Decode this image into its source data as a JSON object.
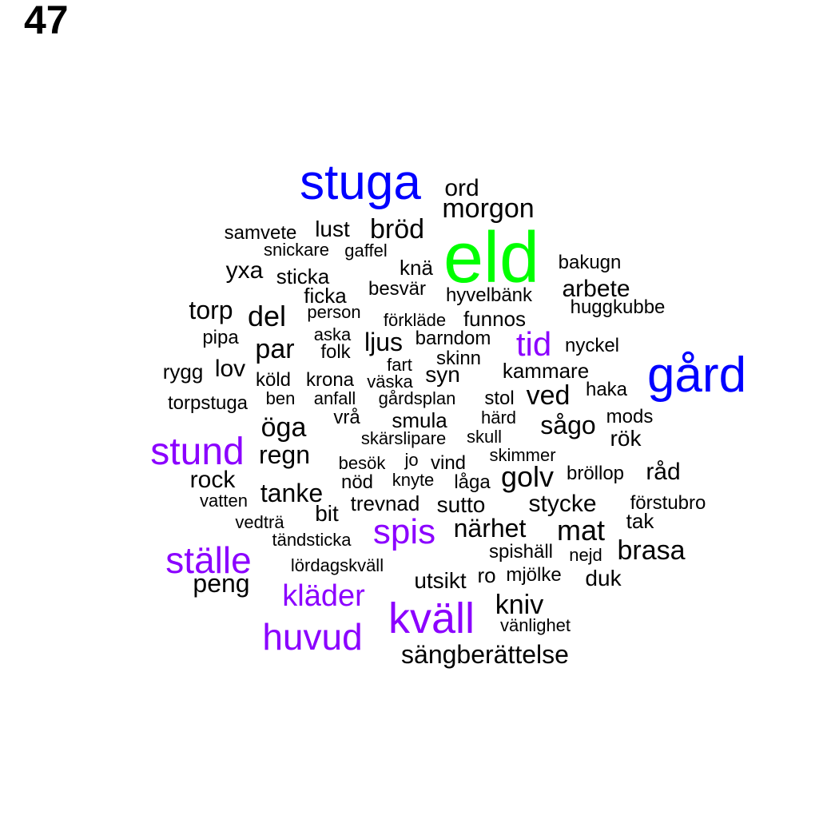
{
  "page_number": "47",
  "colors": {
    "blue": "#0000ff",
    "green": "#00ff00",
    "purple": "#8b00ff",
    "black": "#000000"
  },
  "words": [
    {
      "text": "eld",
      "c": "green"
    },
    {
      "text": "stuga",
      "c": "blue"
    },
    {
      "text": "gård",
      "c": "blue"
    },
    {
      "text": "kväll",
      "c": "purple"
    },
    {
      "text": "stund",
      "c": "purple"
    },
    {
      "text": "huvud",
      "c": "purple"
    },
    {
      "text": "ställe",
      "c": "purple"
    },
    {
      "text": "spis",
      "c": "purple"
    },
    {
      "text": "kläder",
      "c": "purple"
    },
    {
      "text": "tid",
      "c": "purple"
    },
    {
      "text": "ord",
      "c": "black"
    },
    {
      "text": "morgon",
      "c": "black"
    },
    {
      "text": "bröd",
      "c": "black"
    },
    {
      "text": "lust",
      "c": "black"
    },
    {
      "text": "samvete",
      "c": "black"
    },
    {
      "text": "snickare",
      "c": "black"
    },
    {
      "text": "gaffel",
      "c": "black"
    },
    {
      "text": "knä",
      "c": "black"
    },
    {
      "text": "bakugn",
      "c": "black"
    },
    {
      "text": "yxa",
      "c": "black"
    },
    {
      "text": "sticka",
      "c": "black"
    },
    {
      "text": "arbete",
      "c": "black"
    },
    {
      "text": "besvär",
      "c": "black"
    },
    {
      "text": "ficka",
      "c": "black"
    },
    {
      "text": "hyvelbänk",
      "c": "black"
    },
    {
      "text": "huggkubbe",
      "c": "black"
    },
    {
      "text": "torp",
      "c": "black"
    },
    {
      "text": "del",
      "c": "black"
    },
    {
      "text": "person",
      "c": "black"
    },
    {
      "text": "förkläde",
      "c": "black"
    },
    {
      "text": "funnos",
      "c": "black"
    },
    {
      "text": "pipa",
      "c": "black"
    },
    {
      "text": "aska",
      "c": "black"
    },
    {
      "text": "ljus",
      "c": "black"
    },
    {
      "text": "barndom",
      "c": "black"
    },
    {
      "text": "par",
      "c": "black"
    },
    {
      "text": "folk",
      "c": "black"
    },
    {
      "text": "nyckel",
      "c": "black"
    },
    {
      "text": "skinn",
      "c": "black"
    },
    {
      "text": "rygg",
      "c": "black"
    },
    {
      "text": "lov",
      "c": "black"
    },
    {
      "text": "fart",
      "c": "black"
    },
    {
      "text": "kammare",
      "c": "black"
    },
    {
      "text": "köld",
      "c": "black"
    },
    {
      "text": "krona",
      "c": "black"
    },
    {
      "text": "väska",
      "c": "black"
    },
    {
      "text": "syn",
      "c": "black"
    },
    {
      "text": "haka",
      "c": "black"
    },
    {
      "text": "ved",
      "c": "black"
    },
    {
      "text": "torpstuga",
      "c": "black"
    },
    {
      "text": "ben",
      "c": "black"
    },
    {
      "text": "anfall",
      "c": "black"
    },
    {
      "text": "gårdsplan",
      "c": "black"
    },
    {
      "text": "stol",
      "c": "black"
    },
    {
      "text": "mods",
      "c": "black"
    },
    {
      "text": "öga",
      "c": "black"
    },
    {
      "text": "vrå",
      "c": "black"
    },
    {
      "text": "smula",
      "c": "black"
    },
    {
      "text": "härd",
      "c": "black"
    },
    {
      "text": "sågo",
      "c": "black"
    },
    {
      "text": "rök",
      "c": "black"
    },
    {
      "text": "skärslipare",
      "c": "black"
    },
    {
      "text": "skull",
      "c": "black"
    },
    {
      "text": "regn",
      "c": "black"
    },
    {
      "text": "skimmer",
      "c": "black"
    },
    {
      "text": "besök",
      "c": "black"
    },
    {
      "text": "jo",
      "c": "black"
    },
    {
      "text": "vind",
      "c": "black"
    },
    {
      "text": "råd",
      "c": "black"
    },
    {
      "text": "rock",
      "c": "black"
    },
    {
      "text": "golv",
      "c": "black"
    },
    {
      "text": "bröllop",
      "c": "black"
    },
    {
      "text": "nöd",
      "c": "black"
    },
    {
      "text": "knyte",
      "c": "black"
    },
    {
      "text": "låga",
      "c": "black"
    },
    {
      "text": "tanke",
      "c": "black"
    },
    {
      "text": "vatten",
      "c": "black"
    },
    {
      "text": "trevnad",
      "c": "black"
    },
    {
      "text": "sutto",
      "c": "black"
    },
    {
      "text": "stycke",
      "c": "black"
    },
    {
      "text": "förstubro",
      "c": "black"
    },
    {
      "text": "bit",
      "c": "black"
    },
    {
      "text": "vedträ",
      "c": "black"
    },
    {
      "text": "tak",
      "c": "black"
    },
    {
      "text": "närhet",
      "c": "black"
    },
    {
      "text": "mat",
      "c": "black"
    },
    {
      "text": "tändsticka",
      "c": "black"
    },
    {
      "text": "spishäll",
      "c": "black"
    },
    {
      "text": "nejd",
      "c": "black"
    },
    {
      "text": "brasa",
      "c": "black"
    },
    {
      "text": "lördagskväll",
      "c": "black"
    },
    {
      "text": "peng",
      "c": "black"
    },
    {
      "text": "ro",
      "c": "black"
    },
    {
      "text": "mjölke",
      "c": "black"
    },
    {
      "text": "duk",
      "c": "black"
    },
    {
      "text": "utsikt",
      "c": "black"
    },
    {
      "text": "kniv",
      "c": "black"
    },
    {
      "text": "vänlighet",
      "c": "black"
    },
    {
      "text": "sängberättelse",
      "c": "black"
    }
  ]
}
